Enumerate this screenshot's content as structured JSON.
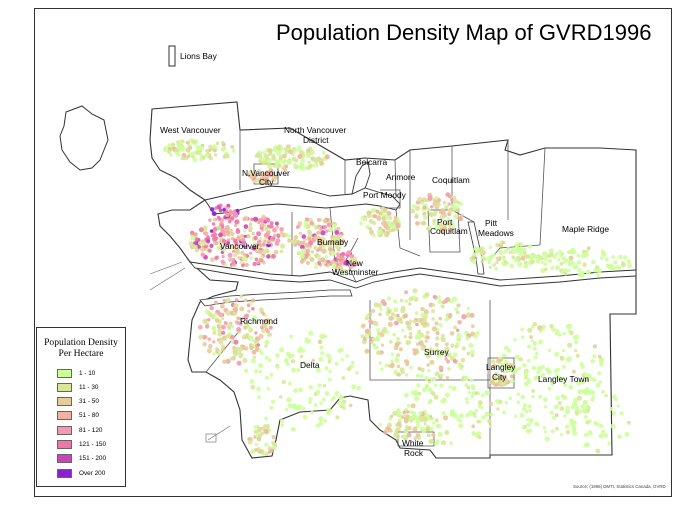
{
  "title": "Population Density Map of GVRD1996",
  "legend": {
    "title_line1": "Population Density",
    "title_line2": "Per Hectare",
    "classes": [
      {
        "label": "1 - 10",
        "color": "#ccff99"
      },
      {
        "label": "11 - 30",
        "color": "#d9e699"
      },
      {
        "label": "31 - 50",
        "color": "#e6cc99"
      },
      {
        "label": "51 - 80",
        "color": "#f0b3a3"
      },
      {
        "label": "81 - 120",
        "color": "#f599b3"
      },
      {
        "label": "121 - 150",
        "color": "#ee77aa"
      },
      {
        "label": "151 - 200",
        "color": "#cc44bb"
      },
      {
        "label": "Over 200",
        "color": "#8822cc"
      }
    ]
  },
  "places": {
    "lions_bay": "Lions Bay",
    "west_vancouver": "West Vancouver",
    "north_vancouver_district_1": "North Vancouver",
    "north_vancouver_district_2": "District",
    "belcarra": "Belcarra",
    "anmore": "Anmore",
    "coquitlam": "Coquitlam",
    "n_vancouver_city_1": "N.Vancouver",
    "n_vancouver_city_2": "City",
    "port_moody": "Port Moody",
    "port_coquitlam_1": "Port",
    "port_coquitlam_2": "Coquitlam",
    "pitt_meadows_1": "Pitt",
    "pitt_meadows_2": "Meadows",
    "maple_ridge": "Maple Ridge",
    "vancouver": "Vancouver",
    "burnaby": "Burnaby",
    "new_westminster_1": "New",
    "new_westminster_2": "Westminster",
    "richmond": "Richmond",
    "delta": "Delta",
    "surrey": "Surrey",
    "langley_city_1": "Langley",
    "langley_city_2": "City",
    "langley_town": "Langley Town",
    "white_rock_1": "White",
    "white_rock_2": "Rock"
  },
  "source": "Source: (1996) DMTI, Statistics Canada, GVRD",
  "colors": {
    "boundary": "#555555",
    "water": "#ffffff",
    "land_outline": "#333333"
  }
}
